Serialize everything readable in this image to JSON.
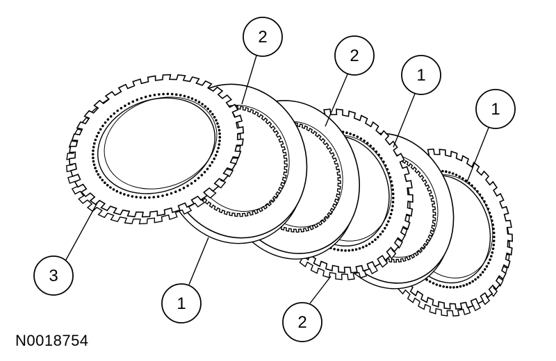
{
  "figure_id": "N0018754",
  "callouts": [
    {
      "label": "2",
      "part": 2
    },
    {
      "label": "2",
      "part": 2
    },
    {
      "label": "1",
      "part": 1
    },
    {
      "label": "1",
      "part": 1
    },
    {
      "label": "3",
      "part": 3
    },
    {
      "label": "1",
      "part": 1
    },
    {
      "label": "2",
      "part": 2
    }
  ],
  "discs": [
    {
      "kind": "friction-plate"
    },
    {
      "kind": "steel-plate"
    },
    {
      "kind": "friction-plate"
    },
    {
      "kind": "steel-plate"
    },
    {
      "kind": "steel-plate"
    },
    {
      "kind": "friction-plate"
    }
  ],
  "colors": {
    "line": "#000000",
    "fill": "#ffffff"
  }
}
